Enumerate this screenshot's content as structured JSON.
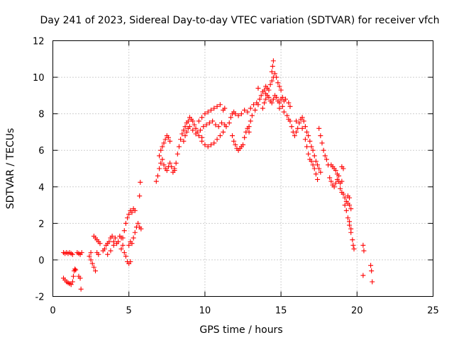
{
  "chart_data": {
    "type": "scatter",
    "title": "Day 241 of 2023, Sidereal Day-to-day VTEC variation (SDTVAR) for receiver vfch",
    "xlabel": "GPS time / hours",
    "ylabel": "SDTVAR / TECUs",
    "xlim": [
      0,
      25
    ],
    "ylim": [
      -2,
      12
    ],
    "xticks": [
      0,
      5,
      10,
      15,
      20,
      25
    ],
    "yticks": [
      -2,
      0,
      2,
      4,
      6,
      8,
      10,
      12
    ],
    "xtick_labels": [
      "0",
      "5",
      "10",
      "15",
      "20",
      "25"
    ],
    "ytick_labels": [
      "-2",
      "0",
      "2",
      "4",
      "6",
      "8",
      "10",
      "12"
    ],
    "grid": true,
    "marker": "plus",
    "color": "#ff0000",
    "series": [
      {
        "name": "SDTVAR",
        "points": [
          [
            0.7,
            -1.0
          ],
          [
            0.8,
            -1.1
          ],
          [
            0.9,
            -1.2
          ],
          [
            1.0,
            -1.25
          ],
          [
            1.1,
            -1.3
          ],
          [
            1.2,
            -1.35
          ],
          [
            1.3,
            -1.2
          ],
          [
            1.35,
            -0.9
          ],
          [
            1.4,
            -0.6
          ],
          [
            1.45,
            -0.5
          ],
          [
            1.5,
            -0.55
          ],
          [
            0.7,
            0.4
          ],
          [
            0.8,
            0.35
          ],
          [
            0.9,
            0.4
          ],
          [
            1.0,
            0.35
          ],
          [
            1.1,
            0.4
          ],
          [
            1.2,
            0.35
          ],
          [
            1.3,
            0.3
          ],
          [
            1.6,
            0.4
          ],
          [
            1.7,
            0.35
          ],
          [
            1.8,
            0.3
          ],
          [
            1.9,
            0.4
          ],
          [
            1.7,
            -0.9
          ],
          [
            1.8,
            -1.0
          ],
          [
            1.85,
            -1.6
          ],
          [
            2.4,
            0.2
          ],
          [
            2.5,
            0.0
          ],
          [
            2.6,
            -0.2
          ],
          [
            2.7,
            -0.4
          ],
          [
            2.8,
            -0.6
          ],
          [
            2.5,
            0.4
          ],
          [
            2.9,
            0.4
          ],
          [
            3.0,
            0.3
          ],
          [
            2.7,
            1.3
          ],
          [
            2.8,
            1.2
          ],
          [
            2.9,
            1.1
          ],
          [
            3.0,
            1.0
          ],
          [
            3.1,
            0.9
          ],
          [
            3.3,
            0.5
          ],
          [
            3.4,
            0.6
          ],
          [
            3.5,
            0.8
          ],
          [
            3.6,
            0.9
          ],
          [
            3.7,
            1.0
          ],
          [
            3.8,
            1.2
          ],
          [
            3.9,
            1.3
          ],
          [
            3.6,
            0.3
          ],
          [
            3.8,
            0.5
          ],
          [
            4.0,
            0.8
          ],
          [
            4.0,
            1.0
          ],
          [
            4.1,
            1.2
          ],
          [
            4.2,
            0.9
          ],
          [
            4.3,
            1.0
          ],
          [
            4.4,
            1.3
          ],
          [
            4.5,
            1.2
          ],
          [
            4.6,
            0.8
          ],
          [
            4.7,
            0.4
          ],
          [
            4.8,
            0.2
          ],
          [
            4.9,
            -0.1
          ],
          [
            5.0,
            -0.2
          ],
          [
            5.1,
            -0.1
          ],
          [
            4.5,
            0.6
          ],
          [
            4.6,
            1.2
          ],
          [
            4.7,
            1.6
          ],
          [
            4.8,
            2.0
          ],
          [
            4.9,
            2.3
          ],
          [
            5.0,
            2.5
          ],
          [
            5.1,
            2.7
          ],
          [
            5.2,
            2.6
          ],
          [
            5.3,
            2.8
          ],
          [
            5.4,
            2.7
          ],
          [
            5.0,
            0.8
          ],
          [
            5.1,
            1.0
          ],
          [
            5.2,
            0.9
          ],
          [
            5.3,
            1.2
          ],
          [
            5.4,
            1.5
          ],
          [
            5.5,
            1.8
          ],
          [
            5.6,
            2.0
          ],
          [
            5.7,
            1.8
          ],
          [
            5.8,
            1.7
          ],
          [
            5.7,
            3.5
          ],
          [
            5.75,
            4.25
          ],
          [
            6.8,
            4.3
          ],
          [
            6.9,
            4.6
          ],
          [
            7.0,
            5.0
          ],
          [
            7.1,
            5.3
          ],
          [
            7.2,
            5.5
          ],
          [
            7.3,
            5.2
          ],
          [
            7.4,
            5.0
          ],
          [
            7.5,
            4.9
          ],
          [
            7.6,
            5.1
          ],
          [
            7.7,
            5.3
          ],
          [
            7.8,
            5.1
          ],
          [
            7.9,
            4.8
          ],
          [
            8.0,
            4.9
          ],
          [
            7.0,
            5.7
          ],
          [
            7.1,
            6.0
          ],
          [
            7.2,
            6.2
          ],
          [
            7.3,
            6.4
          ],
          [
            7.4,
            6.6
          ],
          [
            7.5,
            6.8
          ],
          [
            7.6,
            6.7
          ],
          [
            7.7,
            6.5
          ],
          [
            8.0,
            5.0
          ],
          [
            8.1,
            5.3
          ],
          [
            8.2,
            5.8
          ],
          [
            8.3,
            6.2
          ],
          [
            8.4,
            6.6
          ],
          [
            8.5,
            6.9
          ],
          [
            8.6,
            7.1
          ],
          [
            8.7,
            7.3
          ],
          [
            8.8,
            7.5
          ],
          [
            8.9,
            7.6
          ],
          [
            9.0,
            7.8
          ],
          [
            9.1,
            7.7
          ],
          [
            9.2,
            7.6
          ],
          [
            9.3,
            7.4
          ],
          [
            9.4,
            7.2
          ],
          [
            8.6,
            6.5
          ],
          [
            8.7,
            6.8
          ],
          [
            8.8,
            7.0
          ],
          [
            8.9,
            7.2
          ],
          [
            9.0,
            7.3
          ],
          [
            9.2,
            7.1
          ],
          [
            9.4,
            6.9
          ],
          [
            9.6,
            6.8
          ],
          [
            9.8,
            6.7
          ],
          [
            9.5,
            7.0
          ],
          [
            9.7,
            7.1
          ],
          [
            9.9,
            7.3
          ],
          [
            10.1,
            7.4
          ],
          [
            10.3,
            7.5
          ],
          [
            10.5,
            7.6
          ],
          [
            10.7,
            7.4
          ],
          [
            10.9,
            7.3
          ],
          [
            11.1,
            7.5
          ],
          [
            11.3,
            7.4
          ],
          [
            9.6,
            7.6
          ],
          [
            9.8,
            7.8
          ],
          [
            10.0,
            8.0
          ],
          [
            10.2,
            8.1
          ],
          [
            10.4,
            8.2
          ],
          [
            10.6,
            8.3
          ],
          [
            10.8,
            8.4
          ],
          [
            11.0,
            8.5
          ],
          [
            11.2,
            8.2
          ],
          [
            11.3,
            8.3
          ],
          [
            9.8,
            6.5
          ],
          [
            10.0,
            6.3
          ],
          [
            10.2,
            6.2
          ],
          [
            10.4,
            6.3
          ],
          [
            10.6,
            6.4
          ],
          [
            10.8,
            6.6
          ],
          [
            11.0,
            6.8
          ],
          [
            11.2,
            7.0
          ],
          [
            11.4,
            7.3
          ],
          [
            11.8,
            6.8
          ],
          [
            11.9,
            6.5
          ],
          [
            12.0,
            6.3
          ],
          [
            12.1,
            6.1
          ],
          [
            12.2,
            6.0
          ],
          [
            12.3,
            6.1
          ],
          [
            12.4,
            6.2
          ],
          [
            12.5,
            6.3
          ],
          [
            12.6,
            6.7
          ],
          [
            12.7,
            7.0
          ],
          [
            12.8,
            7.2
          ],
          [
            12.9,
            7.0
          ],
          [
            11.6,
            7.5
          ],
          [
            11.7,
            7.8
          ],
          [
            11.8,
            8.0
          ],
          [
            11.9,
            8.1
          ],
          [
            12.0,
            8.0
          ],
          [
            12.2,
            7.9
          ],
          [
            12.4,
            8.0
          ],
          [
            12.6,
            8.2
          ],
          [
            12.8,
            8.1
          ],
          [
            13.0,
            8.3
          ],
          [
            13.2,
            8.5
          ],
          [
            13.4,
            8.6
          ],
          [
            12.9,
            7.3
          ],
          [
            13.0,
            7.6
          ],
          [
            13.1,
            7.9
          ],
          [
            13.3,
            8.2
          ],
          [
            13.5,
            8.5
          ],
          [
            13.6,
            8.8
          ],
          [
            13.7,
            9.0
          ],
          [
            13.8,
            9.2
          ],
          [
            13.9,
            9.3
          ],
          [
            14.0,
            9.1
          ],
          [
            13.8,
            8.3
          ],
          [
            13.9,
            8.6
          ],
          [
            14.0,
            8.8
          ],
          [
            14.1,
            9.0
          ],
          [
            14.2,
            8.9
          ],
          [
            14.3,
            8.7
          ],
          [
            14.4,
            8.6
          ],
          [
            14.5,
            8.8
          ],
          [
            14.6,
            9.0
          ],
          [
            14.7,
            8.9
          ],
          [
            14.8,
            8.7
          ],
          [
            14.9,
            8.6
          ],
          [
            15.0,
            8.8
          ],
          [
            15.1,
            8.9
          ],
          [
            15.2,
            8.7
          ],
          [
            15.3,
            8.8
          ],
          [
            14.0,
            9.5
          ],
          [
            14.1,
            9.4
          ],
          [
            14.2,
            9.3
          ],
          [
            14.3,
            9.6
          ],
          [
            14.4,
            9.8
          ],
          [
            14.5,
            10.0
          ],
          [
            14.6,
            10.2
          ],
          [
            14.7,
            10.0
          ],
          [
            14.8,
            9.7
          ],
          [
            14.9,
            9.5
          ],
          [
            15.0,
            9.3
          ],
          [
            14.4,
            10.3
          ],
          [
            14.45,
            10.6
          ],
          [
            14.5,
            10.9
          ],
          [
            13.5,
            9.4
          ],
          [
            14.9,
            8.3
          ],
          [
            15.1,
            8.4
          ],
          [
            15.2,
            8.1
          ],
          [
            15.5,
            8.6
          ],
          [
            15.6,
            8.4
          ],
          [
            15.4,
            7.9
          ],
          [
            15.5,
            7.7
          ],
          [
            15.6,
            7.6
          ],
          [
            15.7,
            7.3
          ],
          [
            15.8,
            7.0
          ],
          [
            15.9,
            6.8
          ],
          [
            16.0,
            7.0
          ],
          [
            16.1,
            7.2
          ],
          [
            16.2,
            7.5
          ],
          [
            16.3,
            7.7
          ],
          [
            16.4,
            7.8
          ],
          [
            16.5,
            7.6
          ],
          [
            16.6,
            7.3
          ],
          [
            16.7,
            7.0
          ],
          [
            16.0,
            7.6
          ],
          [
            16.4,
            7.2
          ],
          [
            16.6,
            6.6
          ],
          [
            16.7,
            6.2
          ],
          [
            16.8,
            5.8
          ],
          [
            16.9,
            5.5
          ],
          [
            17.0,
            5.4
          ],
          [
            17.1,
            5.2
          ],
          [
            17.2,
            5.0
          ],
          [
            17.3,
            4.7
          ],
          [
            17.4,
            4.4
          ],
          [
            16.8,
            6.8
          ],
          [
            16.9,
            6.5
          ],
          [
            17.0,
            6.2
          ],
          [
            17.1,
            6.0
          ],
          [
            17.2,
            5.7
          ],
          [
            17.3,
            5.4
          ],
          [
            17.4,
            5.2
          ],
          [
            17.5,
            5.0
          ],
          [
            17.6,
            4.8
          ],
          [
            17.5,
            7.2
          ],
          [
            17.6,
            6.8
          ],
          [
            17.7,
            6.4
          ],
          [
            17.8,
            6.0
          ],
          [
            17.9,
            5.7
          ],
          [
            18.0,
            5.5
          ],
          [
            18.1,
            5.2
          ],
          [
            18.2,
            4.5
          ],
          [
            18.3,
            4.3
          ],
          [
            18.4,
            4.1
          ],
          [
            18.5,
            4.0
          ],
          [
            18.6,
            4.2
          ],
          [
            18.7,
            4.4
          ],
          [
            18.8,
            4.3
          ],
          [
            18.9,
            4.2
          ],
          [
            19.0,
            4.3
          ],
          [
            18.3,
            5.2
          ],
          [
            18.4,
            5.1
          ],
          [
            18.5,
            5.0
          ],
          [
            18.6,
            4.9
          ],
          [
            18.7,
            4.7
          ],
          [
            18.8,
            4.6
          ],
          [
            19.0,
            5.1
          ],
          [
            19.1,
            5.0
          ],
          [
            18.9,
            3.9
          ],
          [
            19.0,
            3.7
          ],
          [
            19.1,
            3.6
          ],
          [
            19.2,
            3.4
          ],
          [
            19.3,
            3.2
          ],
          [
            19.4,
            3.1
          ],
          [
            19.5,
            3.0
          ],
          [
            19.6,
            2.8
          ],
          [
            19.4,
            3.5
          ],
          [
            19.5,
            3.4
          ],
          [
            19.2,
            3.0
          ],
          [
            19.3,
            2.7
          ],
          [
            19.4,
            2.3
          ],
          [
            19.5,
            1.9
          ],
          [
            19.6,
            1.5
          ],
          [
            19.7,
            1.1
          ],
          [
            19.75,
            0.8
          ],
          [
            19.8,
            0.6
          ],
          [
            19.5,
            2.1
          ],
          [
            19.6,
            1.7
          ],
          [
            20.4,
            0.8
          ],
          [
            20.45,
            0.5
          ],
          [
            20.4,
            -0.85
          ],
          [
            20.9,
            -0.3
          ],
          [
            20.95,
            -0.6
          ],
          [
            21.0,
            -1.2
          ]
        ]
      }
    ]
  }
}
